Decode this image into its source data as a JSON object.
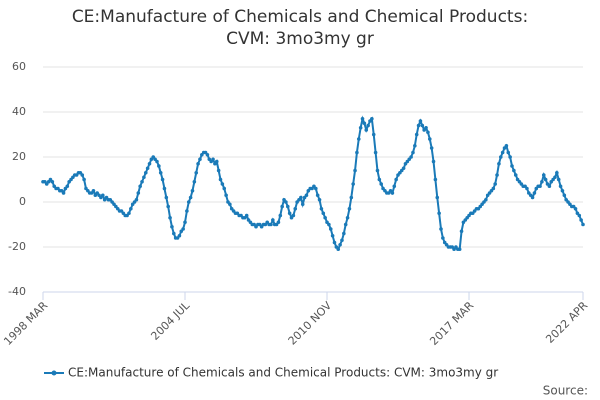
{
  "chart_data": {
    "type": "line",
    "title": "CE:Manufacture of Chemicals and Chemical Products: CVM: 3mo3my gr",
    "source": "Source:",
    "x": [
      "1998-03",
      "1998-04",
      "1998-05",
      "1998-06",
      "1998-07",
      "1998-08",
      "1998-09",
      "1998-10",
      "1998-11",
      "1998-12",
      "1999-01",
      "1999-02",
      "1999-03",
      "1999-04",
      "1999-05",
      "1999-06",
      "1999-07",
      "1999-08",
      "1999-09",
      "1999-10",
      "1999-11",
      "1999-12",
      "2000-01",
      "2000-02",
      "2000-03",
      "2000-04",
      "2000-05",
      "2000-06",
      "2000-07",
      "2000-08",
      "2000-09",
      "2000-10",
      "2000-11",
      "2000-12",
      "2001-01",
      "2001-02",
      "2001-03",
      "2001-04",
      "2001-05",
      "2001-06",
      "2001-07",
      "2001-08",
      "2001-09",
      "2001-10",
      "2001-11",
      "2001-12",
      "2002-01",
      "2002-02",
      "2002-03",
      "2002-04",
      "2002-05",
      "2002-06",
      "2002-07",
      "2002-08",
      "2002-09",
      "2002-10",
      "2002-11",
      "2002-12",
      "2003-01",
      "2003-02",
      "2003-03",
      "2003-04",
      "2003-05",
      "2003-06",
      "2003-07",
      "2003-08",
      "2003-09",
      "2003-10",
      "2003-11",
      "2003-12",
      "2004-01",
      "2004-02",
      "2004-03",
      "2004-04",
      "2004-05",
      "2004-06",
      "2004-07",
      "2004-08",
      "2004-09",
      "2004-10",
      "2004-11",
      "2004-12",
      "2005-01",
      "2005-02",
      "2005-03",
      "2005-04",
      "2005-05",
      "2005-06",
      "2005-07",
      "2005-08",
      "2005-09",
      "2005-10",
      "2005-11",
      "2005-12",
      "2006-01",
      "2006-02",
      "2006-03",
      "2006-04",
      "2006-05",
      "2006-06",
      "2006-07",
      "2006-08",
      "2006-09",
      "2006-10",
      "2006-11",
      "2006-12",
      "2007-01",
      "2007-02",
      "2007-03",
      "2007-04",
      "2007-05",
      "2007-06",
      "2007-07",
      "2007-08",
      "2007-09",
      "2007-10",
      "2007-11",
      "2007-12",
      "2008-01",
      "2008-02",
      "2008-03",
      "2008-04",
      "2008-05",
      "2008-06",
      "2008-07",
      "2008-08",
      "2008-09",
      "2008-10",
      "2008-11",
      "2008-12",
      "2009-01",
      "2009-02",
      "2009-03",
      "2009-04",
      "2009-05",
      "2009-06",
      "2009-07",
      "2009-08",
      "2009-09",
      "2009-10",
      "2009-11",
      "2009-12",
      "2010-01",
      "2010-02",
      "2010-03",
      "2010-04",
      "2010-05",
      "2010-06",
      "2010-07",
      "2010-08",
      "2010-09",
      "2010-10",
      "2010-11",
      "2010-12",
      "2011-01",
      "2011-02",
      "2011-03",
      "2011-04",
      "2011-05",
      "2011-06",
      "2011-07",
      "2011-08",
      "2011-09",
      "2011-10",
      "2011-11",
      "2011-12",
      "2012-01",
      "2012-02",
      "2012-03",
      "2012-04",
      "2012-05",
      "2012-06",
      "2012-07",
      "2012-08",
      "2012-09",
      "2012-10",
      "2012-11",
      "2012-12",
      "2013-01",
      "2013-02",
      "2013-03",
      "2013-04",
      "2013-05",
      "2013-06",
      "2013-07",
      "2013-08",
      "2013-09",
      "2013-10",
      "2013-11",
      "2013-12",
      "2014-01",
      "2014-02",
      "2014-03",
      "2014-04",
      "2014-05",
      "2014-06",
      "2014-07",
      "2014-08",
      "2014-09",
      "2014-10",
      "2014-11",
      "2014-12",
      "2015-01",
      "2015-02",
      "2015-03",
      "2015-04",
      "2015-05",
      "2015-06",
      "2015-07",
      "2015-08",
      "2015-09",
      "2015-10",
      "2015-11",
      "2015-12",
      "2016-01",
      "2016-02",
      "2016-03",
      "2016-04",
      "2016-05",
      "2016-06",
      "2016-07",
      "2016-08",
      "2016-09",
      "2016-10",
      "2016-11",
      "2016-12",
      "2017-01",
      "2017-02",
      "2017-03",
      "2017-04",
      "2017-05",
      "2017-06",
      "2017-07",
      "2017-08",
      "2017-09",
      "2017-10",
      "2017-11",
      "2017-12",
      "2018-01",
      "2018-02",
      "2018-03",
      "2018-04",
      "2018-05",
      "2018-06",
      "2018-07",
      "2018-08",
      "2018-09",
      "2018-10",
      "2018-11",
      "2018-12",
      "2019-01",
      "2019-02",
      "2019-03",
      "2019-04",
      "2019-05",
      "2019-06",
      "2019-07",
      "2019-08",
      "2019-09",
      "2019-10",
      "2019-11",
      "2019-12",
      "2020-01",
      "2020-02",
      "2020-03",
      "2020-04",
      "2020-05",
      "2020-06",
      "2020-07",
      "2020-08",
      "2020-09",
      "2020-10",
      "2020-11",
      "2020-12",
      "2021-01",
      "2021-02",
      "2021-03",
      "2021-04",
      "2021-05",
      "2021-06",
      "2021-07",
      "2021-08",
      "2021-09",
      "2021-10",
      "2021-11",
      "2021-12",
      "2022-01",
      "2022-02",
      "2022-03",
      "2022-04"
    ],
    "series": [
      {
        "name": "CE:Manufacture of Chemicals and Chemical Products: CVM: 3mo3my gr",
        "color": "#1a7ab8",
        "values": [
          9,
          9,
          8,
          9,
          10,
          9,
          7,
          6,
          6,
          5,
          5,
          4,
          6,
          7,
          9,
          10,
          11,
          12,
          12,
          13,
          13,
          12,
          10,
          6,
          5,
          4,
          4,
          5,
          3,
          4,
          3,
          2,
          3,
          1,
          2,
          1,
          1,
          0,
          -1,
          -2,
          -3,
          -4,
          -4,
          -5,
          -6,
          -6,
          -5,
          -3,
          -1,
          0,
          1,
          4,
          7,
          9,
          11,
          13,
          15,
          17,
          19,
          20,
          19,
          18,
          16,
          13,
          10,
          6,
          2,
          -2,
          -7,
          -11,
          -14,
          -16,
          -16,
          -15,
          -13,
          -12,
          -9,
          -4,
          0,
          2,
          5,
          9,
          13,
          17,
          19,
          21,
          22,
          22,
          21,
          19,
          18,
          19,
          17,
          18,
          14,
          10,
          8,
          6,
          3,
          0,
          -1,
          -3,
          -4,
          -5,
          -5,
          -6,
          -6,
          -7,
          -7,
          -6,
          -8,
          -9,
          -10,
          -10,
          -11,
          -10,
          -10,
          -11,
          -10,
          -10,
          -9,
          -10,
          -10,
          -8,
          -10,
          -10,
          -9,
          -6,
          -2,
          1,
          0,
          -2,
          -5,
          -7,
          -6,
          -3,
          0,
          1,
          2,
          -1,
          2,
          3,
          5,
          6,
          6,
          7,
          6,
          3,
          1,
          -3,
          -5,
          -7,
          -9,
          -10,
          -12,
          -15,
          -18,
          -20,
          -21,
          -19,
          -17,
          -14,
          -10,
          -7,
          -3,
          2,
          8,
          14,
          22,
          28,
          33,
          37,
          35,
          32,
          34,
          36,
          37,
          30,
          22,
          14,
          10,
          8,
          6,
          5,
          4,
          4,
          5,
          4,
          7,
          10,
          12,
          13,
          14,
          15,
          17,
          18,
          19,
          20,
          22,
          25,
          30,
          34,
          36,
          34,
          32,
          33,
          31,
          28,
          24,
          18,
          10,
          2,
          -5,
          -12,
          -16,
          -18,
          -19,
          -20,
          -20,
          -20,
          -21,
          -20,
          -21,
          -21,
          -13,
          -9,
          -8,
          -7,
          -6,
          -5,
          -5,
          -4,
          -3,
          -3,
          -2,
          -1,
          0,
          1,
          3,
          4,
          5,
          6,
          8,
          12,
          17,
          20,
          22,
          24,
          25,
          22,
          20,
          16,
          14,
          12,
          10,
          9,
          8,
          7,
          7,
          6,
          4,
          3,
          2,
          4,
          6,
          7,
          7,
          9,
          12,
          10,
          8,
          7,
          9,
          10,
          11,
          13,
          10,
          7,
          5,
          3,
          1,
          0,
          -1,
          -2,
          -2,
          -3,
          -5,
          -6,
          -8,
          -10
        ]
      }
    ],
    "xlim": [
      "1998-03",
      "2022-04"
    ],
    "xticks": [
      {
        "value": "1998-03",
        "label": "1998 MAR"
      },
      {
        "value": "2004-07",
        "label": "2004 JUL"
      },
      {
        "value": "2010-11",
        "label": "2010 NOV"
      },
      {
        "value": "2017-03",
        "label": "2017 MAR"
      },
      {
        "value": "2022-04",
        "label": "2022 APR"
      }
    ],
    "ylim": [
      -40,
      60
    ],
    "yticks": [
      -40,
      -20,
      0,
      20,
      40,
      60
    ],
    "grid": true
  }
}
